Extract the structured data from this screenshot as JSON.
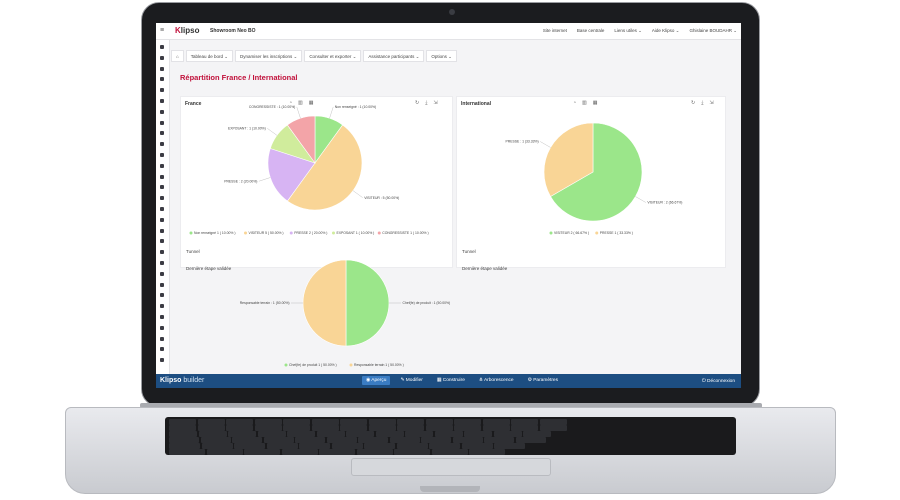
{
  "app": {
    "logo_k": "K",
    "logo_rest": "lipso",
    "event_name": "Showroom Neo BO"
  },
  "topbar": {
    "items": [
      "Site internet",
      "Base centrale",
      "Liens utiles ⌄",
      "Aide Klipso ⌄",
      "Ghislaine BOUDAHR ⌄"
    ]
  },
  "nav": {
    "home_icon": "home-icon",
    "tabs": [
      "Tableau de bord ⌄",
      "Dynamiser les inscriptions ⌄",
      "Consulter et exporter ⌄",
      "Assistance participants ⌄",
      "Options ⌄"
    ]
  },
  "page": {
    "title": "Répartition France / International"
  },
  "panels": {
    "france": {
      "title": "France"
    },
    "international": {
      "title": "International"
    }
  },
  "side_labels": {
    "left": [
      "Tunnel",
      "Dernière étape validée"
    ],
    "right": [
      "Tunnel",
      "Dernière étape validée"
    ]
  },
  "colors": {
    "green": "#9be68a",
    "orange": "#f9d596",
    "purple": "#d7b4f3",
    "lime": "#d0ec9c",
    "pink": "#f3a4a8",
    "accent": "#c1113b",
    "bottombar": "#1d4e82"
  },
  "chart_data": [
    {
      "type": "pie",
      "title": "France",
      "slices": [
        {
          "label": "Non renseigné",
          "value": 1,
          "percent": 10.0,
          "color": "#9be68a",
          "callout": "Non renseigné : 1 (10.00%)",
          "legend": "Non renseigné 1 ( 10.00% )"
        },
        {
          "label": "VISITEUR",
          "value": 5,
          "percent": 50.0,
          "color": "#f9d596",
          "callout": "VISITEUR : 5 (50.00%)",
          "legend": "VISITEUR 5 ( 50.00% )"
        },
        {
          "label": "PRESSE",
          "value": 2,
          "percent": 20.0,
          "color": "#d7b4f3",
          "callout": "PRESSE : 2 (20.00%)",
          "legend": "PRESSE 2 ( 20.00% )"
        },
        {
          "label": "EXPOSANT",
          "value": 1,
          "percent": 10.0,
          "color": "#d0ec9c",
          "callout": "EXPOSANT : 1 (10.00%)",
          "legend": "EXPOSANT 1 ( 10.00% )"
        },
        {
          "label": "CONGRESSISTE",
          "value": 1,
          "percent": 10.0,
          "color": "#f3a4a8",
          "callout": "CONGRESSISTE : 1 (10.00%)",
          "legend": "CONGRESSISTE 1 ( 10.00% )"
        }
      ]
    },
    {
      "type": "pie",
      "title": "International",
      "slices": [
        {
          "label": "VISITEUR",
          "value": 2,
          "percent": 66.67,
          "color": "#9be68a",
          "callout": "VISITEUR : 2 (66.67%)",
          "legend": "VISITEUR 2 ( 66.67% )"
        },
        {
          "label": "PRESSE",
          "value": 1,
          "percent": 33.33,
          "color": "#f9d596",
          "callout": "PRESSE : 1 (33.33%)",
          "legend": "PRESSE 1 ( 33.33% )"
        }
      ]
    },
    {
      "type": "pie",
      "title": "",
      "slices": [
        {
          "label": "Chef de produit",
          "value": 1,
          "percent": 50.0,
          "color": "#9be68a",
          "callout": "Chef(fe) de produit : 1 (50.00%)",
          "legend": "Chef(fe) de produit 1 ( 50.00% )"
        },
        {
          "label": "Responsable terrain",
          "value": 1,
          "percent": 50.0,
          "color": "#f9d596",
          "callout": "Responsable terrain : 1 (50.00%)",
          "legend": "Responsable terrain 1 ( 50.00% )"
        }
      ]
    }
  ],
  "bottombar": {
    "logo_k": "Klipso",
    "logo_rest": " builder",
    "tabs": [
      "◉ Aperçu",
      "✎ Modifier",
      "▦ Construire",
      "⋔ Arborescence",
      "⚙ Paramètres"
    ],
    "logout": "⏻ Déconnexion"
  }
}
